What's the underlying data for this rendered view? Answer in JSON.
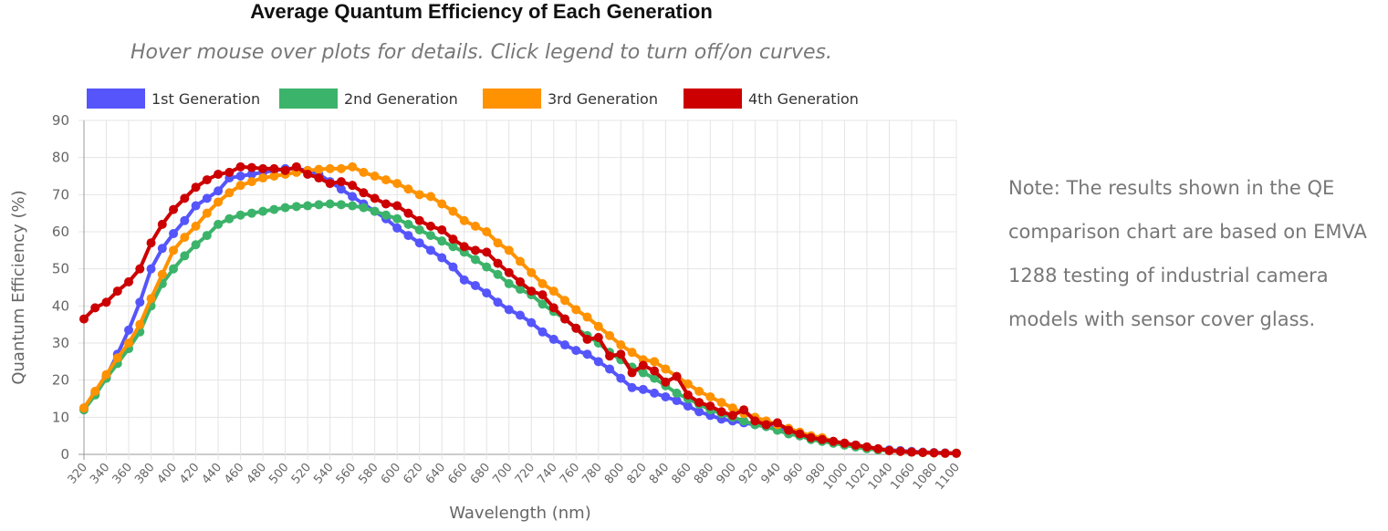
{
  "chart_data": {
    "type": "line",
    "title": "Average Quantum Efficiency of Each Generation",
    "subtitle": "Hover mouse over plots for details. Click legend to turn off/on curves.",
    "xlabel": "Wavelength (nm)",
    "ylabel": "Quantum Efficiency (%)",
    "xlim": [
      320,
      1100
    ],
    "ylim": [
      0,
      90
    ],
    "x_step": 10,
    "x_tick_step": 20,
    "y_tick_step": 10,
    "grid": true,
    "legend_position": "top",
    "series": [
      {
        "name": "1st Generation",
        "color": "#5555fb",
        "values": [
          12.5,
          16.5,
          21,
          27,
          33.5,
          41,
          50,
          55.5,
          59.5,
          63,
          67,
          69,
          71,
          74.5,
          75,
          75.5,
          76,
          76.5,
          77,
          77,
          76.5,
          75.5,
          73.5,
          71.5,
          69.5,
          67.5,
          65.5,
          63.5,
          61,
          59,
          57,
          55,
          53,
          50.5,
          47,
          45.5,
          43.5,
          41,
          39,
          37.5,
          35.5,
          33,
          31,
          29.5,
          28,
          27,
          25,
          23,
          20.5,
          18,
          17.5,
          16.5,
          15.5,
          14.5,
          13,
          11.5,
          10.5,
          9.5,
          9,
          8.5,
          8,
          7.5,
          7,
          6,
          5,
          4.5,
          4,
          3.5,
          3,
          2.5,
          2,
          1.5,
          1.2,
          1,
          0.8,
          0.6,
          0.5,
          0.4,
          0.3
        ]
      },
      {
        "name": "2nd Generation",
        "color": "#3cb36a",
        "values": [
          12,
          16,
          20.5,
          24.5,
          28.5,
          33,
          40,
          46,
          50,
          53.5,
          56.5,
          59,
          62,
          63.5,
          64.5,
          65,
          65.5,
          66,
          66.5,
          66.8,
          67,
          67.3,
          67.5,
          67.3,
          67,
          66.5,
          65.5,
          64.5,
          63.5,
          62,
          60.5,
          59,
          57.5,
          56,
          54.5,
          52.5,
          50.5,
          48.5,
          46,
          44.5,
          43,
          40.5,
          38.5,
          36.5,
          34,
          32,
          30,
          27.5,
          25.5,
          23.5,
          22,
          20.5,
          18.5,
          16.5,
          15,
          13.5,
          12,
          11,
          10,
          9,
          8,
          7.5,
          6.5,
          5.5,
          5,
          4,
          3.5,
          3,
          2.5,
          2,
          1.5,
          1.2,
          1,
          0.8,
          0.6,
          0.5,
          0.4,
          0.3,
          0.3
        ]
      },
      {
        "name": "3rd Generation",
        "color": "#ff9200",
        "values": [
          12.5,
          17,
          21.5,
          26,
          30,
          35,
          42,
          48.5,
          55,
          58.5,
          61.5,
          65,
          68,
          70.5,
          72.5,
          73.5,
          74.5,
          75,
          75.5,
          76,
          76.5,
          76.8,
          77,
          77,
          77.5,
          76,
          75,
          74,
          73,
          71.5,
          70,
          69.5,
          67.5,
          65.5,
          63,
          61.5,
          60,
          57,
          55,
          52,
          49,
          46,
          44,
          41.5,
          39,
          37,
          34.5,
          32,
          29.5,
          27.5,
          25.5,
          25,
          23,
          21,
          19,
          17,
          15.5,
          14,
          12.5,
          11,
          10,
          9,
          8,
          7,
          6,
          5,
          4.5,
          3.5,
          3,
          2.5,
          2,
          1.5,
          1,
          0.8,
          0.6,
          0.5,
          0.4,
          0.3,
          0.3
        ]
      },
      {
        "name": "4th Generation",
        "color": "#cc0000",
        "values": [
          36.5,
          39.5,
          41,
          44,
          46.5,
          50,
          57,
          62,
          66,
          69,
          72,
          74,
          75.5,
          76,
          77.5,
          77.3,
          77,
          77,
          76.5,
          77.5,
          75.5,
          74.5,
          73,
          73.5,
          72.5,
          70.5,
          69,
          67.5,
          67,
          65,
          63,
          61.5,
          60.5,
          58,
          56,
          55,
          54.5,
          51.5,
          49,
          46.5,
          44,
          43,
          39.5,
          36.5,
          34,
          31,
          31.5,
          26.5,
          27,
          22,
          24,
          22.5,
          19.5,
          21,
          16,
          14,
          13,
          11.5,
          10.5,
          12,
          9,
          8,
          8.5,
          6.5,
          5.5,
          4.5,
          4,
          3.5,
          3,
          2.5,
          2,
          1.5,
          1,
          0.8,
          0.6,
          0.5,
          0.4,
          0.3,
          0.3
        ]
      }
    ]
  },
  "note": "Note: The results shown in the QE comparison chart are based on EMVA 1288 testing of industrial camera models with sensor cover glass."
}
